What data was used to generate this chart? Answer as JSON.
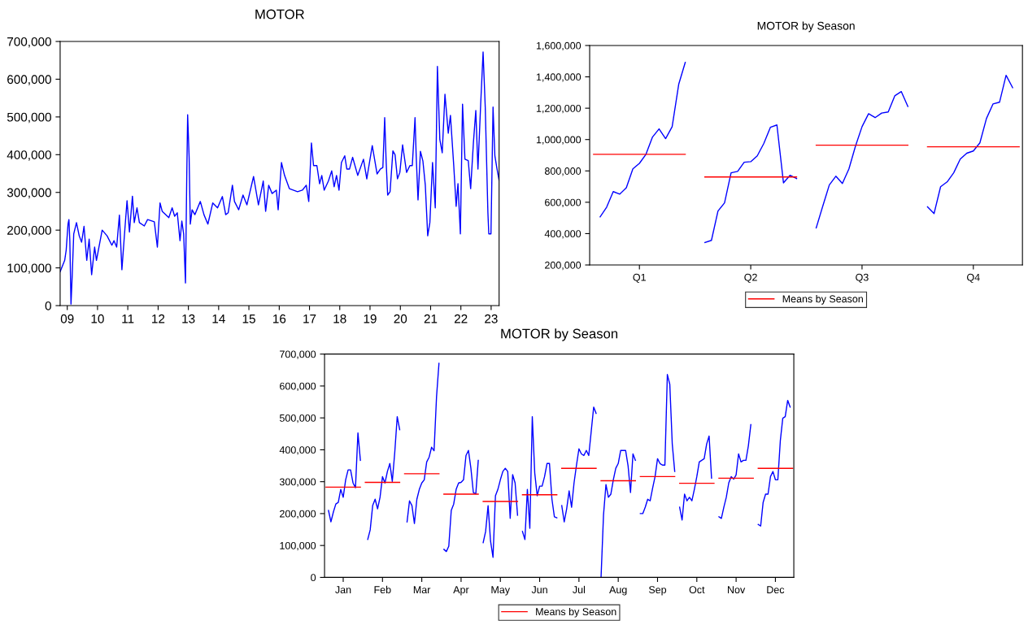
{
  "chart_data": [
    {
      "type": "line",
      "title": "MOTOR",
      "xlim": [
        "2009-04-06",
        "2023-10-05"
      ],
      "ylim": [
        0,
        700000
      ],
      "xticks": [
        {
          "value": "2009-07",
          "label": "09"
        },
        {
          "value": "2010-07",
          "label": "10"
        },
        {
          "value": "2011-07",
          "label": "11"
        },
        {
          "value": "2012-07",
          "label": "12"
        },
        {
          "value": "2013-07",
          "label": "13"
        },
        {
          "value": "2014-07",
          "label": "14"
        },
        {
          "value": "2015-07",
          "label": "15"
        },
        {
          "value": "2016-07",
          "label": "16"
        },
        {
          "value": "2017-07",
          "label": "17"
        },
        {
          "value": "2018-07",
          "label": "18"
        },
        {
          "value": "2019-07",
          "label": "19"
        },
        {
          "value": "2020-07",
          "label": "20"
        },
        {
          "value": "2021-07",
          "label": "21"
        },
        {
          "value": "2022-07",
          "label": "22"
        },
        {
          "value": "2023-07",
          "label": "23"
        }
      ],
      "yticks": [
        {
          "value": 0,
          "label": "0"
        },
        {
          "value": 100000,
          "label": "100,000"
        },
        {
          "value": 200000,
          "label": "200,000"
        },
        {
          "value": 300000,
          "label": "300,000"
        },
        {
          "value": 400000,
          "label": "400,000"
        },
        {
          "value": 500000,
          "label": "500,000"
        },
        {
          "value": 600000,
          "label": "600,000"
        },
        {
          "value": 700000,
          "label": "700,000"
        }
      ],
      "grid": false,
      "legend": false,
      "series": [
        {
          "color": "#0000ff",
          "x": [
            "2009-04-06",
            "2009-05-31",
            "2009-06-18",
            "2009-07-10",
            "2009-07-21",
            "2009-08-01",
            "2009-08-15",
            "2009-08-30",
            "2009-09-17",
            "2009-10-20",
            "2009-11-22",
            "2009-12-21",
            "2010-01-19",
            "2010-02-21",
            "2010-03-22",
            "2010-04-21",
            "2010-05-27",
            "2010-06-18",
            "2010-08-26",
            "2010-10-24",
            "2010-12-21",
            "2011-01-16",
            "2011-02-17",
            "2011-03-22",
            "2011-04-21",
            "2011-05-27",
            "2011-06-22",
            "2011-07-21",
            "2011-08-26",
            "2011-09-17",
            "2011-10-20",
            "2011-11-18",
            "2012-01-16",
            "2012-02-25",
            "2012-05-16",
            "2012-06-22",
            "2012-07-24",
            "2012-08-19",
            "2012-11-07",
            "2012-12-17",
            "2013-01-16",
            "2013-02-17",
            "2013-03-22",
            "2013-04-13",
            "2013-05-05",
            "2013-05-27",
            "2013-06-11",
            "2013-06-22",
            "2013-07-10",
            "2013-07-24",
            "2013-08-15",
            "2013-09-17",
            "2013-11-22",
            "2014-01-05",
            "2014-02-21",
            "2014-04-21",
            "2014-06-18",
            "2014-08-15",
            "2014-09-24",
            "2014-10-24",
            "2014-12-14",
            "2015-01-08",
            "2015-02-28",
            "2015-04-21",
            "2015-06-07",
            "2015-08-26",
            "2015-10-24",
            "2015-12-21",
            "2016-01-19",
            "2016-02-25",
            "2016-04-06",
            "2016-05-27",
            "2016-06-18",
            "2016-07-28",
            "2016-09-03",
            "2016-10-31",
            "2017-02-07",
            "2017-04-06",
            "2017-05-23",
            "2017-06-22",
            "2017-07-24",
            "2017-08-19",
            "2017-09-28",
            "2017-10-31",
            "2017-11-26",
            "2017-12-25",
            "2018-02-14",
            "2018-03-26",
            "2018-04-24",
            "2018-05-23",
            "2018-06-22",
            "2018-07-21",
            "2018-08-30",
            "2018-09-24",
            "2018-10-27",
            "2018-12-03",
            "2019-02-03",
            "2019-04-13",
            "2019-05-23",
            "2019-07-28",
            "2019-09-24",
            "2019-11-04",
            "2019-12-03",
            "2019-12-25",
            "2020-01-12",
            "2020-01-30",
            "2020-02-28",
            "2020-04-02",
            "2020-04-28",
            "2020-05-27",
            "2020-06-25",
            "2020-07-28",
            "2020-09-14",
            "2020-10-24",
            "2020-11-22",
            "2020-12-25",
            "2021-01-08",
            "2021-01-30",
            "2021-02-28",
            "2021-03-30",
            "2021-04-28",
            "2021-05-27",
            "2021-06-22",
            "2021-07-24",
            "2021-08-26",
            "2021-09-21",
            "2021-10-20",
            "2021-11-18",
            "2021-12-21",
            "2022-01-30",
            "2022-02-25",
            "2022-04-06",
            "2022-05-05",
            "2022-05-27",
            "2022-06-25",
            "2022-07-21",
            "2022-08-19",
            "2022-09-28",
            "2022-10-27",
            "2022-11-29",
            "2022-12-28",
            "2023-01-23",
            "2023-02-25",
            "2023-03-26",
            "2023-04-21",
            "2023-05-23",
            "2023-06-03",
            "2023-06-29",
            "2023-07-24",
            "2023-08-15",
            "2023-09-10",
            "2023-10-05"
          ],
          "values": [
            90000,
            120000,
            147000,
            216000,
            228000,
            172000,
            4000,
            82000,
            190000,
            220000,
            185000,
            168000,
            210000,
            120000,
            176000,
            82000,
            155000,
            120000,
            200000,
            185000,
            160000,
            172000,
            155000,
            240000,
            95000,
            203000,
            278000,
            195000,
            290000,
            220000,
            259000,
            220000,
            211000,
            228000,
            222000,
            155000,
            272000,
            250000,
            233000,
            259000,
            237000,
            246000,
            172000,
            224000,
            190000,
            60000,
            336000,
            506000,
            393000,
            216000,
            254000,
            241000,
            276000,
            241000,
            216000,
            272000,
            259000,
            289000,
            241000,
            246000,
            319000,
            276000,
            254000,
            293000,
            267000,
            342000,
            267000,
            330000,
            250000,
            319000,
            297000,
            306000,
            254000,
            379000,
            345000,
            310000,
            302000,
            306000,
            319000,
            276000,
            431000,
            371000,
            371000,
            323000,
            345000,
            306000,
            330000,
            357000,
            315000,
            345000,
            306000,
            379000,
            397000,
            362000,
            362000,
            393000,
            345000,
            388000,
            336000,
            424000,
            349000,
            362000,
            366000,
            498000,
            379000,
            293000,
            302000,
            410000,
            400000,
            336000,
            353000,
            426000,
            353000,
            371000,
            371000,
            498000,
            397000,
            280000,
            409000,
            383000,
            319000,
            185000,
            220000,
            379000,
            259000,
            634000,
            440000,
            405000,
            560000,
            457000,
            504000,
            371000,
            263000,
            323000,
            190000,
            534000,
            388000,
            384000,
            310000,
            431000,
            517000,
            362000,
            534000,
            672000,
            526000,
            246000,
            190000,
            190000,
            526000,
            397000,
            362000,
            332000
          ]
        }
      ]
    },
    {
      "type": "line",
      "title": "MOTOR by Season",
      "categories": [
        null,
        null,
        null,
        null,
        null,
        null,
        null,
        "Q1",
        null,
        null,
        null,
        null,
        null,
        null,
        null,
        null,
        null,
        null,
        null,
        null,
        null,
        null,
        null,
        null,
        "Q2",
        null,
        null,
        null,
        null,
        null,
        null,
        null,
        null,
        null,
        null,
        null,
        null,
        null,
        null,
        null,
        null,
        "Q3",
        null,
        null,
        null,
        null,
        null,
        null,
        null,
        null,
        null,
        null,
        null,
        null,
        null,
        null,
        null,
        null,
        "Q4",
        null,
        null,
        null,
        null,
        null,
        null,
        null
      ],
      "ylim": [
        200000,
        1600000
      ],
      "yticks": [
        {
          "value": 200000,
          "label": "200,000"
        },
        {
          "value": 400000,
          "label": "400,000"
        },
        {
          "value": 600000,
          "label": "600,000"
        },
        {
          "value": 800000,
          "label": "800,000"
        },
        {
          "value": 1000000,
          "label": "1,000,000"
        },
        {
          "value": 1200000,
          "label": "1,200,000"
        },
        {
          "value": 1400000,
          "label": "1,400,000"
        },
        {
          "value": 1600000,
          "label": "1,600,000"
        }
      ],
      "grid": false,
      "legend": "bottom",
      "series": [
        {
          "color": "#0000ff",
          "values": [
            null,
            507000,
            569000,
            668000,
            652000,
            693000,
            813000,
            848000,
            906000,
            1016000,
            1068000,
            1006000,
            1082000,
            1352000,
            1492000,
            null,
            null,
            343000,
            357000,
            544000,
            596000,
            788000,
            797000,
            855000,
            859000,
            896000,
            975000,
            1078000,
            1093000,
            724000,
            772000,
            751000,
            null,
            null,
            436000,
            575000,
            710000,
            766000,
            720000,
            813000,
            958000,
            1082000,
            1165000,
            1140000,
            1169000,
            1176000,
            1279000,
            1306000,
            1211000,
            null,
            null,
            571000,
            528000,
            699000,
            730000,
            788000,
            875000,
            913000,
            927000,
            979000,
            1134000,
            1227000,
            1238000,
            1410000,
            1331000,
            null
          ]
        },
        {
          "name": "Means by Season",
          "color": "#ff0000",
          "values": [
            906000,
            906000,
            906000,
            906000,
            906000,
            906000,
            906000,
            906000,
            906000,
            906000,
            906000,
            906000,
            906000,
            906000,
            906000,
            null,
            null,
            761000,
            761000,
            761000,
            761000,
            761000,
            761000,
            761000,
            761000,
            761000,
            761000,
            761000,
            761000,
            761000,
            761000,
            761000,
            null,
            null,
            964000,
            964000,
            964000,
            964000,
            964000,
            964000,
            964000,
            964000,
            964000,
            964000,
            964000,
            964000,
            964000,
            964000,
            964000,
            null,
            null,
            954000,
            954000,
            954000,
            954000,
            954000,
            954000,
            954000,
            954000,
            954000,
            954000,
            954000,
            954000,
            954000,
            954000,
            954000
          ]
        }
      ]
    },
    {
      "type": "line",
      "title": "MOTOR by Season",
      "categories": [
        null,
        null,
        null,
        null,
        null,
        null,
        null,
        "Jan",
        null,
        null,
        null,
        null,
        null,
        null,
        null,
        null,
        null,
        null,
        null,
        null,
        null,
        null,
        null,
        "Feb",
        null,
        null,
        null,
        null,
        null,
        null,
        null,
        null,
        null,
        null,
        null,
        null,
        null,
        null,
        null,
        "Mar",
        null,
        null,
        null,
        null,
        null,
        null,
        null,
        null,
        null,
        null,
        null,
        null,
        null,
        null,
        null,
        "Apr",
        null,
        null,
        null,
        null,
        null,
        null,
        null,
        null,
        null,
        null,
        null,
        null,
        null,
        null,
        null,
        "May",
        null,
        null,
        null,
        null,
        null,
        null,
        null,
        null,
        null,
        null,
        null,
        null,
        null,
        null,
        null,
        "Jun",
        null,
        null,
        null,
        null,
        null,
        null,
        null,
        null,
        null,
        null,
        null,
        null,
        null,
        null,
        null,
        "Jul",
        null,
        null,
        null,
        null,
        null,
        null,
        null,
        null,
        null,
        null,
        null,
        null,
        null,
        null,
        null,
        "Aug",
        null,
        null,
        null,
        null,
        null,
        null,
        null,
        null,
        null,
        null,
        null,
        null,
        null,
        null,
        null,
        "Sep",
        null,
        null,
        null,
        null,
        null,
        null,
        null,
        null,
        null,
        null,
        null,
        null,
        null,
        null,
        null,
        "Oct",
        null,
        null,
        null,
        null,
        null,
        null,
        null,
        null,
        null,
        null,
        null,
        null,
        null,
        null,
        null,
        "Nov",
        null,
        null,
        null,
        null,
        null,
        null,
        null,
        null,
        null,
        null,
        null,
        null,
        null,
        null,
        null,
        "Dec",
        null,
        null,
        null,
        null,
        null,
        null,
        null
      ],
      "ylim": [
        0,
        700000
      ],
      "yticks": [
        {
          "value": 0,
          "label": "0"
        },
        {
          "value": 100000,
          "label": "100,000"
        },
        {
          "value": 200000,
          "label": "200,000"
        },
        {
          "value": 300000,
          "label": "300,000"
        },
        {
          "value": 400000,
          "label": "400,000"
        },
        {
          "value": 500000,
          "label": "500,000"
        },
        {
          "value": 600000,
          "label": "600,000"
        },
        {
          "value": 700000,
          "label": "700,000"
        }
      ],
      "grid": false,
      "legend": "bottom",
      "series": [
        {
          "color": "#0000ff",
          "values": [
            null,
            210000,
            174000,
            205000,
            230000,
            235000,
            276000,
            251000,
            306000,
            337000,
            337000,
            296000,
            281000,
            453000,
            367000,
            null,
            null,
            119000,
            149000,
            225000,
            245000,
            215000,
            251000,
            316000,
            296000,
            332000,
            357000,
            301000,
            392000,
            504000,
            463000,
            null,
            null,
            174000,
            240000,
            225000,
            169000,
            245000,
            276000,
            296000,
            306000,
            362000,
            377000,
            408000,
            397000,
            565000,
            671000,
            null,
            88000,
            81000,
            98000,
            210000,
            230000,
            276000,
            296000,
            298000,
            306000,
            382000,
            398000,
            342000,
            266000,
            262000,
            367000,
            null,
            109000,
            144000,
            225000,
            114000,
            63000,
            256000,
            276000,
            306000,
            332000,
            342000,
            332000,
            185000,
            322000,
            296000,
            195000,
            null,
            144000,
            119000,
            276000,
            154000,
            504000,
            327000,
            256000,
            286000,
            286000,
            316000,
            357000,
            357000,
            245000,
            190000,
            187000,
            null,
            225000,
            174000,
            215000,
            271000,
            220000,
            296000,
            352000,
            403000,
            387000,
            382000,
            398000,
            382000,
            458000,
            534000,
            514000,
            null,
            0,
            195000,
            291000,
            251000,
            261000,
            306000,
            342000,
            357000,
            398000,
            398000,
            398000,
            350000,
            266000,
            387000,
            367000,
            null,
            200000,
            200000,
            220000,
            245000,
            240000,
            280000,
            316000,
            372000,
            357000,
            352000,
            352000,
            636000,
            605000,
            418000,
            332000,
            null,
            220000,
            180000,
            261000,
            240000,
            251000,
            240000,
            276000,
            316000,
            362000,
            367000,
            372000,
            418000,
            443000,
            311000,
            null,
            null,
            190000,
            185000,
            220000,
            251000,
            296000,
            316000,
            308000,
            321000,
            387000,
            362000,
            367000,
            367000,
            413000,
            479000,
            null,
            null,
            166000,
            161000,
            235000,
            261000,
            261000,
            316000,
            332000,
            306000,
            306000,
            428000,
            499000,
            504000,
            555000,
            534000,
            null
          ]
        },
        {
          "name": "Means by Season",
          "color": "#ff0000",
          "values": [
            283000,
            283000,
            283000,
            283000,
            283000,
            283000,
            283000,
            283000,
            283000,
            283000,
            283000,
            283000,
            283000,
            283000,
            283000,
            null,
            298000,
            298000,
            298000,
            298000,
            298000,
            298000,
            298000,
            298000,
            298000,
            298000,
            298000,
            298000,
            298000,
            298000,
            298000,
            null,
            325000,
            325000,
            325000,
            325000,
            325000,
            325000,
            325000,
            325000,
            325000,
            325000,
            325000,
            325000,
            325000,
            325000,
            325000,
            null,
            261000,
            261000,
            261000,
            261000,
            261000,
            261000,
            261000,
            261000,
            261000,
            261000,
            261000,
            261000,
            261000,
            261000,
            261000,
            null,
            238000,
            238000,
            238000,
            238000,
            238000,
            238000,
            238000,
            238000,
            238000,
            238000,
            238000,
            238000,
            238000,
            238000,
            238000,
            null,
            259000,
            259000,
            259000,
            259000,
            259000,
            259000,
            259000,
            259000,
            259000,
            259000,
            259000,
            259000,
            259000,
            259000,
            259000,
            null,
            342000,
            342000,
            342000,
            342000,
            342000,
            342000,
            342000,
            342000,
            342000,
            342000,
            342000,
            342000,
            342000,
            342000,
            342000,
            null,
            303000,
            303000,
            303000,
            303000,
            303000,
            303000,
            303000,
            303000,
            303000,
            303000,
            303000,
            303000,
            303000,
            303000,
            303000,
            null,
            316000,
            316000,
            316000,
            316000,
            316000,
            316000,
            316000,
            316000,
            316000,
            316000,
            316000,
            316000,
            316000,
            316000,
            316000,
            null,
            295000,
            295000,
            295000,
            295000,
            295000,
            295000,
            295000,
            295000,
            295000,
            295000,
            295000,
            295000,
            295000,
            295000,
            295000,
            null,
            311000,
            311000,
            311000,
            311000,
            311000,
            311000,
            311000,
            311000,
            311000,
            311000,
            311000,
            311000,
            311000,
            311000,
            311000,
            null,
            342000,
            342000,
            342000,
            342000,
            342000,
            342000,
            342000,
            342000,
            342000,
            342000,
            342000,
            342000,
            342000,
            342000,
            342000
          ]
        }
      ]
    }
  ]
}
